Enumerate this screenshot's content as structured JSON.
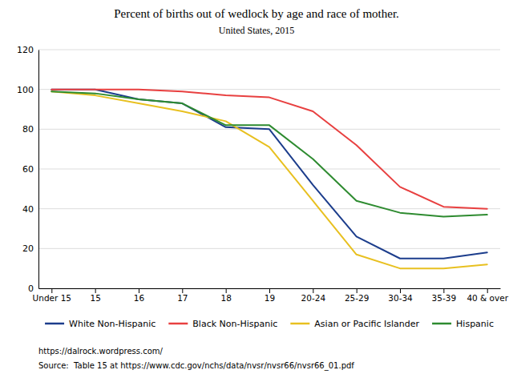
{
  "chart_data": {
    "type": "line",
    "title": "Percent of births out of wedlock by age and race of mother.",
    "subtitle": "United States, 2015",
    "categories": [
      "Under 15",
      "15",
      "16",
      "17",
      "18",
      "19",
      "20-24",
      "25-29",
      "30-34",
      "35-39",
      "40 & over"
    ],
    "series": [
      {
        "name": "White Non-Hispanic",
        "color": "#1C3D8C",
        "values": [
          100,
          100,
          95,
          93,
          81,
          80,
          52,
          26,
          15,
          15,
          18
        ]
      },
      {
        "name": "Black Non-Hispanic",
        "color": "#E84040",
        "values": [
          100,
          100,
          100,
          99,
          97,
          96,
          89,
          72,
          51,
          41,
          40
        ]
      },
      {
        "name": "Asian or Pacific Islander",
        "color": "#E8C020",
        "values": [
          99,
          97,
          93,
          89,
          84,
          71,
          44,
          17,
          10,
          10,
          12
        ]
      },
      {
        "name": "Hispanic",
        "color": "#2E8B30",
        "values": [
          99,
          98,
          95,
          93,
          82,
          82,
          65,
          44,
          38,
          36,
          37
        ]
      }
    ],
    "ylim": [
      0,
      120
    ],
    "yticks": [
      0,
      20,
      40,
      60,
      80,
      100,
      120
    ],
    "grid": true,
    "legend": "bottom",
    "annotations": [
      "https://dalrock.wordpress.com/",
      "Source:  Table 15 at https://www.cdc.gov/nchs/data/nvsr/nvsr66/nvsr66_01.pdf"
    ]
  }
}
